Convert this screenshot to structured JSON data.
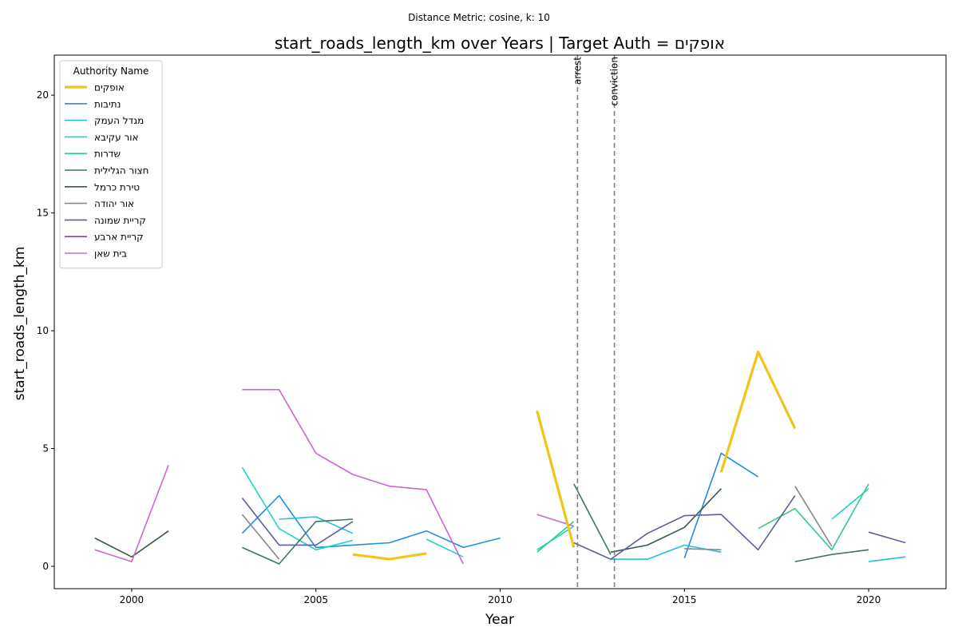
{
  "chart_data": {
    "type": "line",
    "suptitle": "Distance Metric: cosine, k: 10",
    "title": "start_roads_length_km over Years | Target Auth = אופקים",
    "xlabel": "Year",
    "ylabel": "start_roads_length_km",
    "xlim": [
      1997.9,
      2022.1
    ],
    "ylim": [
      -0.95,
      21.7
    ],
    "xticks": [
      2000,
      2005,
      2010,
      2015,
      2020
    ],
    "yticks": [
      0,
      5,
      10,
      15,
      20
    ],
    "grid": false,
    "legend": {
      "title": "Authority Name",
      "placement": "upper-left"
    },
    "vlines": [
      {
        "x": 2012.1,
        "label": "arrest",
        "color": "#808080"
      },
      {
        "x": 2013.1,
        "label": "conviction",
        "color": "#808080"
      }
    ],
    "series": [
      {
        "name": "אופקים",
        "color": "#f0c419",
        "highlight": true,
        "segments": [
          [
            [
              2006,
              0.5
            ],
            [
              2007,
              0.3
            ],
            [
              2008,
              0.55
            ]
          ],
          [
            [
              2011,
              6.6
            ],
            [
              2012,
              0.8
            ]
          ],
          [
            [
              2016,
              4.0
            ],
            [
              2017,
              9.1
            ],
            [
              2018,
              5.85
            ]
          ]
        ]
      },
      {
        "name": "נתיבות",
        "color": "#1f8fe0",
        "segments": [
          [
            [
              2003,
              1.4
            ],
            [
              2004,
              3.0
            ],
            [
              2005,
              0.8
            ],
            [
              2006,
              0.9
            ],
            [
              2007,
              1.0
            ],
            [
              2008,
              1.5
            ],
            [
              2009,
              0.8
            ],
            [
              2010,
              1.2
            ]
          ],
          [
            [
              2015,
              0.35
            ],
            [
              2016,
              4.8
            ],
            [
              2017,
              3.8
            ]
          ]
        ]
      },
      {
        "name": "מגדל העמק",
        "color": "#1fc0ea",
        "segments": [
          [
            [
              2004,
              2.0
            ],
            [
              2005,
              2.1
            ],
            [
              2006,
              1.4
            ]
          ],
          [
            [
              2013,
              0.3
            ],
            [
              2014,
              0.3
            ],
            [
              2015,
              0.9
            ],
            [
              2016,
              0.6
            ]
          ],
          [
            [
              2020,
              0.2
            ],
            [
              2021,
              0.4
            ]
          ]
        ]
      },
      {
        "name": "אור עקיבא",
        "color": "#1ad9c1",
        "segments": [
          [
            [
              2003,
              4.2
            ],
            [
              2004,
              1.6
            ],
            [
              2005,
              0.7
            ],
            [
              2006,
              1.1
            ]
          ],
          [
            [
              2008,
              1.15
            ],
            [
              2009,
              0.4
            ]
          ],
          [
            [
              2011,
              0.7
            ],
            [
              2012,
              1.7
            ]
          ],
          [
            [
              2019,
              2.0
            ],
            [
              2020,
              3.3
            ]
          ]
        ]
      },
      {
        "name": "שדרות",
        "color": "#2fcc8a",
        "segments": [
          [
            [
              2011,
              0.6
            ],
            [
              2012,
              1.9
            ]
          ],
          [
            [
              2017,
              1.6
            ],
            [
              2018,
              2.45
            ],
            [
              2019,
              0.7
            ],
            [
              2020,
              3.5
            ]
          ]
        ]
      },
      {
        "name": "חצור הגלילית",
        "color": "#3c7a5a",
        "segments": [
          [
            [
              2003,
              0.8
            ],
            [
              2004,
              0.1
            ],
            [
              2005,
              1.9
            ],
            [
              2006,
              2.0
            ]
          ],
          [
            [
              2012,
              3.5
            ],
            [
              2013,
              0.5
            ]
          ],
          [
            [
              2018,
              0.2
            ],
            [
              2019,
              0.5
            ],
            [
              2020,
              0.7
            ]
          ]
        ]
      },
      {
        "name": "טירת כרמל",
        "color": "#375a4f",
        "segments": [
          [
            [
              1999,
              1.2
            ],
            [
              2000,
              0.4
            ],
            [
              2001,
              1.5
            ]
          ],
          [
            [
              2013,
              0.6
            ],
            [
              2014,
              0.9
            ],
            [
              2015,
              1.65
            ],
            [
              2016,
              3.3
            ]
          ]
        ]
      },
      {
        "name": "אור יהודה",
        "color": "#848a88",
        "segments": [
          [
            [
              2003,
              2.2
            ],
            [
              2004,
              0.3
            ]
          ],
          [
            [
              2015,
              0.75
            ],
            [
              2016,
              0.7
            ]
          ],
          [
            [
              2018,
              3.4
            ],
            [
              2019,
              0.85
            ]
          ]
        ]
      },
      {
        "name": "קריית שמונה",
        "color": "#5e5f9c",
        "segments": [
          [
            [
              2003,
              2.9
            ],
            [
              2004,
              0.9
            ],
            [
              2005,
              0.9
            ],
            [
              2006,
              1.9
            ]
          ],
          [
            [
              2012,
              1.0
            ],
            [
              2013,
              0.3
            ],
            [
              2014,
              1.4
            ],
            [
              2015,
              2.15
            ],
            [
              2016,
              2.2
            ],
            [
              2017,
              0.7
            ],
            [
              2018,
              3.0
            ]
          ],
          [
            [
              2020,
              1.45
            ],
            [
              2021,
              1.0
            ]
          ]
        ]
      },
      {
        "name": "קריית ארבע",
        "color": "#7b46b8",
        "segments": []
      },
      {
        "name": "בית שאן",
        "color": "#cc66d1",
        "segments": [
          [
            [
              1999,
              0.7
            ],
            [
              2000,
              0.2
            ],
            [
              2001,
              4.3
            ]
          ],
          [
            [
              2003,
              7.5
            ],
            [
              2004,
              7.5
            ],
            [
              2005,
              4.8
            ],
            [
              2006,
              3.9
            ],
            [
              2007,
              3.4
            ],
            [
              2008,
              3.25
            ],
            [
              2009,
              0.1
            ]
          ],
          [
            [
              2011,
              2.2
            ],
            [
              2012,
              1.7
            ]
          ]
        ]
      }
    ]
  }
}
